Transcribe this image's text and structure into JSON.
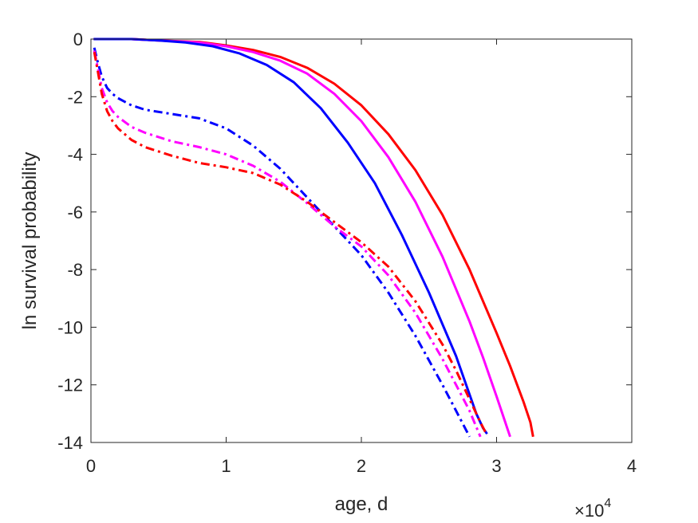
{
  "chart_data": {
    "type": "line",
    "xlabel": "age, d",
    "ylabel": "ln survival probability",
    "xlim": [
      0,
      40000
    ],
    "ylim": [
      -14,
      0
    ],
    "x_ticks": [
      0,
      10000,
      20000,
      30000,
      40000
    ],
    "x_tick_labels": [
      "0",
      "1",
      "2",
      "3",
      "4"
    ],
    "x_exponent": {
      "base": "×10",
      "power": "4"
    },
    "y_ticks": [
      0,
      -2,
      -4,
      -6,
      -8,
      -10,
      -12,
      -14
    ],
    "y_tick_labels": [
      "0",
      "-2",
      "-4",
      "-6",
      "-8",
      "-10",
      "-12",
      "-14"
    ],
    "grid": false,
    "legend": "none",
    "series": [
      {
        "color": "#ff0000",
        "style": "solid",
        "x": [
          200,
          3000,
          5000,
          8000,
          10000,
          12000,
          14000,
          16000,
          18000,
          20000,
          22000,
          24000,
          26000,
          28000,
          30000,
          31000,
          32000,
          32500,
          32700
        ],
        "y": [
          0,
          0,
          -0.05,
          -0.1,
          -0.22,
          -0.38,
          -0.62,
          -1.0,
          -1.55,
          -2.3,
          -3.3,
          -4.55,
          -6.1,
          -8.0,
          -10.2,
          -11.35,
          -12.6,
          -13.3,
          -13.8
        ]
      },
      {
        "color": "#ff00ff",
        "style": "solid",
        "x": [
          200,
          3000,
          5000,
          8000,
          10000,
          12000,
          14000,
          16000,
          18000,
          20000,
          22000,
          24000,
          26000,
          28000,
          29000,
          30000,
          30500,
          31000
        ],
        "y": [
          0,
          0,
          -0.05,
          -0.12,
          -0.25,
          -0.45,
          -0.75,
          -1.2,
          -1.9,
          -2.85,
          -4.1,
          -5.65,
          -7.55,
          -9.8,
          -11.05,
          -12.4,
          -13.1,
          -13.8
        ]
      },
      {
        "color": "#0000ff",
        "style": "solid",
        "x": [
          200,
          3000,
          5000,
          7000,
          9000,
          11000,
          13000,
          15000,
          17000,
          19000,
          21000,
          23000,
          25000,
          27000,
          28500,
          29000,
          29300
        ],
        "y": [
          0,
          0,
          -0.05,
          -0.12,
          -0.25,
          -0.5,
          -0.9,
          -1.5,
          -2.4,
          -3.6,
          -5.0,
          -6.8,
          -8.8,
          -11.0,
          -13.0,
          -13.5,
          -13.7
        ]
      },
      {
        "color": "#0000ff",
        "style": "dashdot",
        "x": [
          250,
          500,
          800,
          1200,
          1600,
          2000,
          3000,
          4000,
          6000,
          8000,
          10000,
          12000,
          14000,
          16000,
          18000,
          20000,
          22000,
          24000,
          26000,
          27000,
          28000
        ],
        "y": [
          -0.3,
          -0.8,
          -1.3,
          -1.7,
          -1.9,
          -2.05,
          -2.3,
          -2.45,
          -2.6,
          -2.75,
          -3.1,
          -3.7,
          -4.5,
          -5.5,
          -6.5,
          -7.5,
          -8.8,
          -10.3,
          -12.0,
          -12.9,
          -13.8
        ]
      },
      {
        "color": "#ff00ff",
        "style": "dashdot",
        "x": [
          250,
          500,
          800,
          1200,
          1600,
          2000,
          3000,
          4000,
          6000,
          8000,
          10000,
          12000,
          14000,
          16000,
          18000,
          20000,
          22000,
          24000,
          26000,
          27000,
          28000,
          28800
        ],
        "y": [
          -0.4,
          -1.0,
          -1.7,
          -2.2,
          -2.5,
          -2.7,
          -3.05,
          -3.25,
          -3.55,
          -3.75,
          -4.0,
          -4.4,
          -4.95,
          -5.7,
          -6.5,
          -7.2,
          -8.2,
          -9.5,
          -11.1,
          -12.0,
          -12.9,
          -13.8
        ]
      },
      {
        "color": "#ff0000",
        "style": "dashdot",
        "x": [
          250,
          500,
          800,
          1200,
          1600,
          2000,
          3000,
          4000,
          6000,
          8000,
          10000,
          12000,
          14000,
          16000,
          18000,
          20000,
          22000,
          24000,
          26000,
          27000,
          28000,
          28800,
          29300
        ],
        "y": [
          -0.45,
          -1.1,
          -1.9,
          -2.5,
          -2.85,
          -3.1,
          -3.5,
          -3.75,
          -4.05,
          -4.3,
          -4.45,
          -4.65,
          -5.05,
          -5.65,
          -6.35,
          -7.05,
          -7.9,
          -9.1,
          -10.6,
          -11.5,
          -12.5,
          -13.3,
          -13.75
        ]
      }
    ]
  }
}
